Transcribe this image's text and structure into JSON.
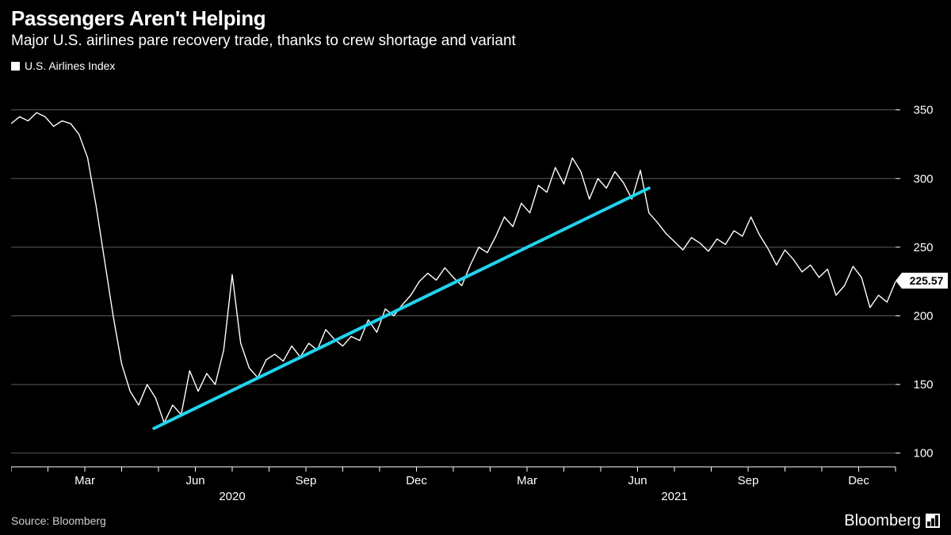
{
  "title": "Passengers Aren't Helping",
  "subtitle": "Major U.S. airlines pare recovery trade, thanks to crew shortage and variant",
  "legend_label": "U.S. Airlines Index",
  "source_text": "Source: Bloomberg",
  "brand": "Bloomberg",
  "chart": {
    "type": "line",
    "background": "#000000",
    "grid_color": "#5a5a5a",
    "line_color": "#ffffff",
    "line_width": 1.4,
    "trend_color": "#22d3ee",
    "trend_width": 4,
    "ylim": [
      90,
      370
    ],
    "yticks": [
      100,
      150,
      200,
      250,
      300,
      350
    ],
    "xlim": [
      0,
      104
    ],
    "x_minor_ticks": [
      0,
      4.33,
      8.67,
      13,
      17.33,
      21.67,
      26,
      30.33,
      34.67,
      39,
      43.33,
      47.67,
      52,
      56.33,
      60.67,
      65,
      69.33,
      73.67,
      78,
      82.33,
      86.67,
      91,
      95.33,
      99.67,
      104
    ],
    "x_month_labels": [
      {
        "x": 8.67,
        "label": "Mar"
      },
      {
        "x": 21.67,
        "label": "Jun"
      },
      {
        "x": 34.67,
        "label": "Sep"
      },
      {
        "x": 47.67,
        "label": "Dec"
      },
      {
        "x": 60.67,
        "label": "Mar"
      },
      {
        "x": 73.67,
        "label": "Jun"
      },
      {
        "x": 86.67,
        "label": "Sep"
      },
      {
        "x": 99.67,
        "label": "Dec"
      }
    ],
    "x_year_labels": [
      {
        "x": 26,
        "label": "2020"
      },
      {
        "x": 78,
        "label": "2021"
      }
    ],
    "last_value": 225.57,
    "trend_line": {
      "x1": 16.8,
      "y1": 118,
      "x2": 75,
      "y2": 293
    },
    "series": [
      340,
      345,
      342,
      348,
      345,
      338,
      342,
      340,
      332,
      315,
      280,
      240,
      200,
      165,
      145,
      135,
      150,
      140,
      122,
      135,
      128,
      160,
      145,
      158,
      150,
      175,
      230,
      180,
      162,
      155,
      168,
      172,
      167,
      178,
      170,
      180,
      175,
      190,
      183,
      178,
      185,
      182,
      197,
      188,
      205,
      200,
      208,
      215,
      225,
      231,
      226,
      235,
      228,
      222,
      237,
      250,
      246,
      258,
      272,
      265,
      282,
      275,
      295,
      290,
      308,
      296,
      315,
      305,
      285,
      300,
      293,
      305,
      297,
      285,
      306,
      275,
      268,
      260,
      254,
      248,
      257,
      253,
      247,
      256,
      252,
      262,
      258,
      272,
      259,
      249,
      237,
      248,
      241,
      232,
      237,
      228,
      234,
      215,
      222,
      236,
      228,
      206,
      215,
      210,
      225
    ]
  }
}
